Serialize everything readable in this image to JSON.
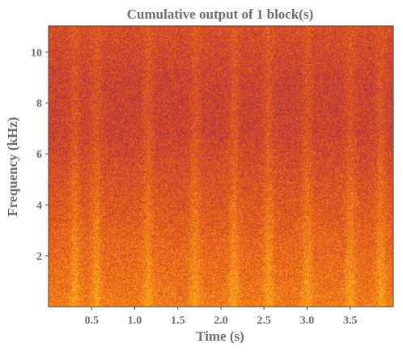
{
  "chart_data": {
    "type": "heatmap",
    "title": "Cumulative output of 1 block(s)",
    "xlabel": "Time (s)",
    "ylabel": "Frequency (kHz)",
    "xlim": [
      0.0,
      4.0
    ],
    "ylim": [
      0.0,
      11.025
    ],
    "x_ticks": [
      0.5,
      1.0,
      1.5,
      2.0,
      2.5,
      3.0,
      3.5
    ],
    "x_tick_labels": [
      "0.5",
      "1.0",
      "1.5",
      "2.0",
      "2.5",
      "3.0",
      "3.5"
    ],
    "y_ticks": [
      2,
      4,
      6,
      8,
      10
    ],
    "y_tick_labels": [
      "2",
      "4",
      "6",
      "8",
      "10"
    ],
    "colormap": "inferno",
    "colors": {
      "low": "#7a1d6e",
      "mid": "#e0501e",
      "high": "#ffb21a"
    },
    "grid": false,
    "bright_bands_s": [
      0.3,
      0.55,
      1.15,
      1.7,
      2.15,
      2.55,
      3.0,
      3.5,
      3.85
    ]
  }
}
